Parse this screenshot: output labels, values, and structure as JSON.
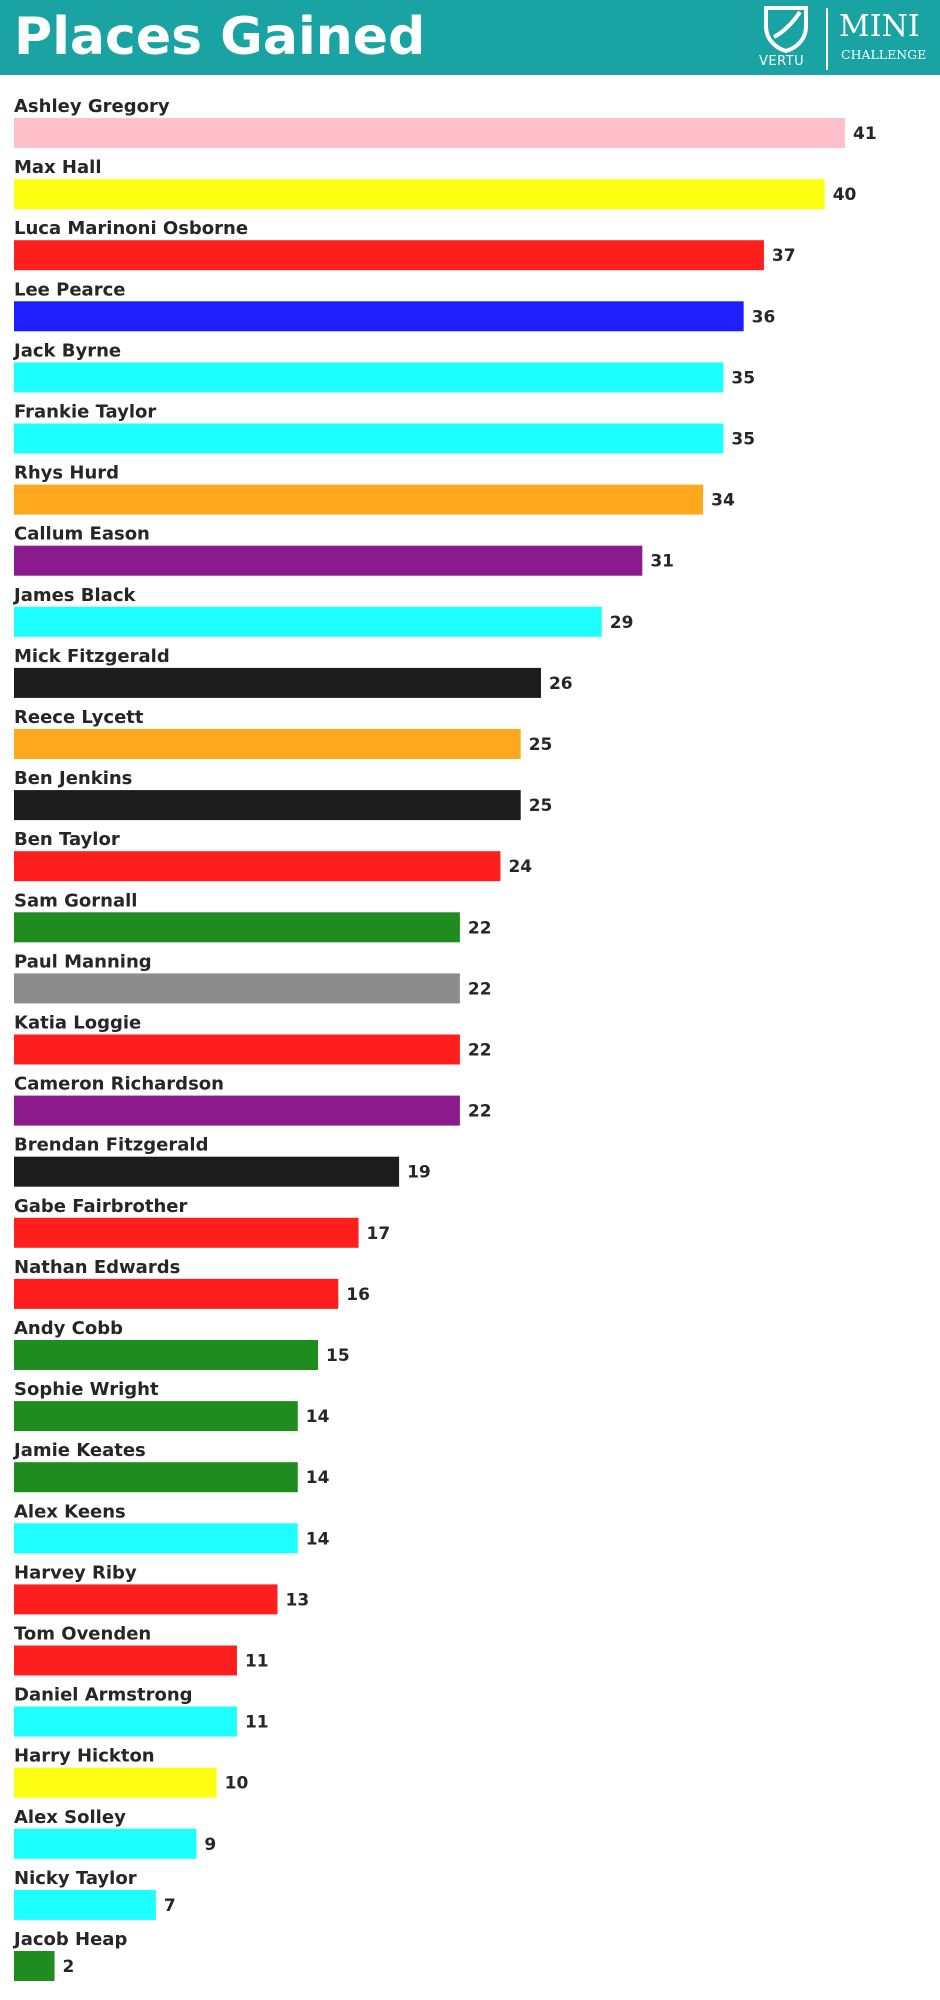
{
  "header": {
    "title": "Places Gained",
    "background_color": "#19a3a3",
    "logo": {
      "brand": "VERTU",
      "series_line1": "MINI",
      "series_line2": "CHALLENGE",
      "icon": "vertu-shield-icon"
    }
  },
  "chart_data": {
    "type": "bar",
    "orientation": "horizontal",
    "title": "Places Gained",
    "xlabel": "",
    "ylabel": "",
    "xlim": [
      0,
      41
    ],
    "grid": false,
    "legend": "none",
    "categories": [
      "Ashley Gregory",
      "Max Hall",
      "Luca Marinoni Osborne",
      "Lee Pearce",
      "Jack Byrne",
      "Frankie Taylor",
      "Rhys Hurd",
      "Callum Eason",
      "James Black",
      "Mick Fitzgerald",
      "Reece Lycett",
      "Ben Jenkins",
      "Ben Taylor",
      "Sam Gornall",
      "Paul Manning",
      "Katia Loggie",
      "Cameron Richardson",
      "Brendan Fitzgerald",
      "Gabe Fairbrother",
      "Nathan Edwards",
      "Andy Cobb",
      "Sophie Wright",
      "Jamie Keates",
      "Alex Keens",
      "Harvey Riby",
      "Tom Ovenden",
      "Daniel Armstrong",
      "Harry Hickton",
      "Alex Solley",
      "Nicky Taylor",
      "Jacob Heap"
    ],
    "values": [
      41,
      40,
      37,
      36,
      35,
      35,
      34,
      31,
      29,
      26,
      25,
      25,
      24,
      22,
      22,
      22,
      22,
      19,
      17,
      16,
      15,
      14,
      14,
      14,
      13,
      11,
      11,
      10,
      9,
      7,
      2
    ],
    "colors": [
      "#ffc0cb",
      "#ffff14",
      "#ff1e1e",
      "#1e1eff",
      "#1effff",
      "#1effff",
      "#ffa81e",
      "#8c1a8c",
      "#1effff",
      "#1c1c1c",
      "#ffa81e",
      "#1c1c1c",
      "#ff1e1e",
      "#1e8c1e",
      "#8c8c8c",
      "#ff1e1e",
      "#8c1a8c",
      "#1c1c1c",
      "#ff1e1e",
      "#ff1e1e",
      "#1e8c1e",
      "#1e8c1e",
      "#1e8c1e",
      "#1effff",
      "#ff1e1e",
      "#ff1e1e",
      "#1effff",
      "#ffff14",
      "#1effff",
      "#1effff",
      "#1e8c1e"
    ]
  }
}
